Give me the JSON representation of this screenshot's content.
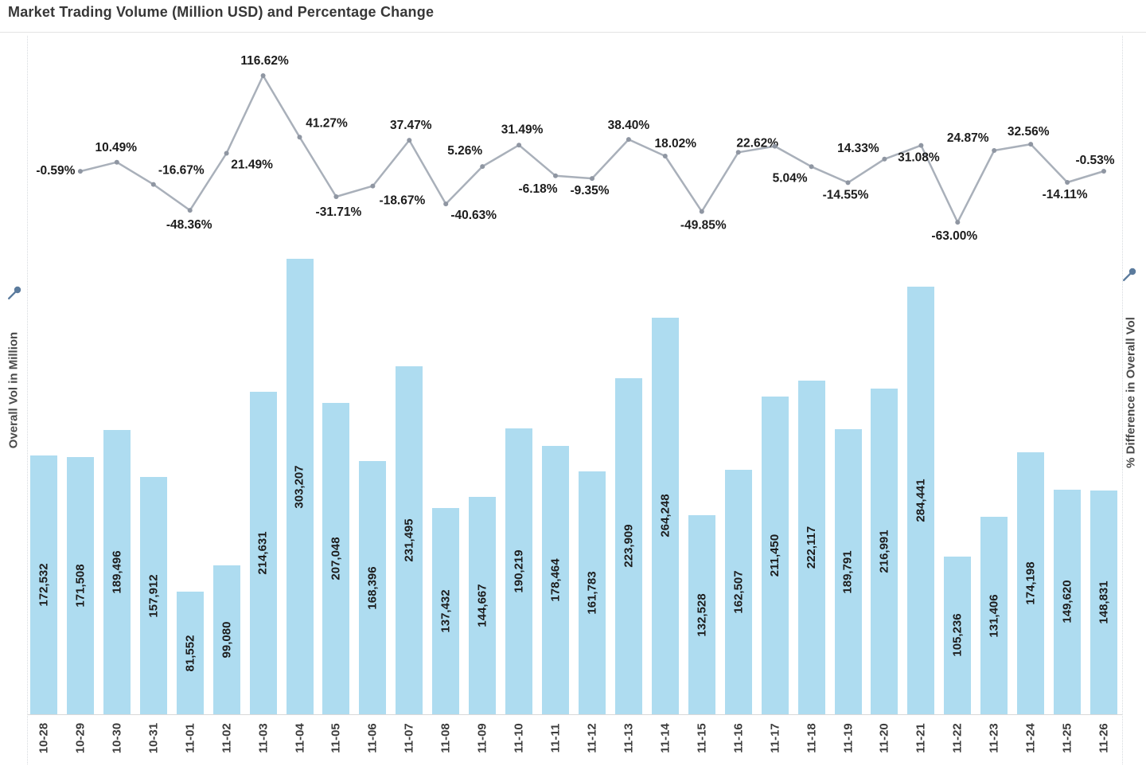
{
  "title": "Market Trading Volume (Million USD) and Percentage Change",
  "axes": {
    "left_title": "Overall Vol in Million",
    "right_title": "% Difference in Overall Vol",
    "left_pin_icon": "pushpin-icon",
    "right_pin_icon": "pushpin-icon"
  },
  "colors": {
    "bar_fill": "#aedcf0",
    "line_stroke": "#a9b0ba",
    "marker_fill": "#8f96a2",
    "value_label_text": "#1c1c1c",
    "tick_label_text": "#3c3c3c",
    "title_text": "#373737",
    "pin_icon": "#5b7b9d",
    "panel_border": "#d9d9d9"
  },
  "chart_data": {
    "type": "combo-bar-line",
    "title": "Market Trading Volume (Million USD) and Percentage Change",
    "grid": false,
    "legend": "none",
    "bar_ylim": [
      0,
      310000
    ],
    "line_ylim": [
      -70,
      125
    ],
    "bar_label_format": "#,###",
    "categories": [
      "10-28",
      "10-29",
      "10-30",
      "10-31",
      "11-01",
      "11-02",
      "11-03",
      "11-04",
      "11-05",
      "11-06",
      "11-07",
      "11-08",
      "11-09",
      "11-10",
      "11-11",
      "11-12",
      "11-13",
      "11-14",
      "11-15",
      "11-16",
      "11-17",
      "11-18",
      "11-19",
      "11-20",
      "11-21",
      "11-22",
      "11-23",
      "11-24",
      "11-25",
      "11-26"
    ],
    "series": [
      {
        "name": "Overall Vol in Million",
        "type": "bar",
        "axis": "left",
        "values": [
          172532,
          171508,
          189496,
          157912,
          81552,
          99080,
          214631,
          303207,
          207048,
          168396,
          231495,
          137432,
          144667,
          190219,
          178464,
          161783,
          223909,
          264248,
          132528,
          162507,
          211450,
          222117,
          189791,
          216991,
          284441,
          105236,
          131406,
          174198,
          149620,
          148831
        ]
      },
      {
        "name": "% Difference in Overall Vol",
        "type": "line",
        "axis": "right",
        "points": [
          {
            "category": "10-29",
            "value": -0.59,
            "label": "-0.59%",
            "label_dx": -31,
            "label_dy": 0
          },
          {
            "category": "10-30",
            "value": 10.49,
            "label": "10.49%",
            "label_dx": -1,
            "label_dy": -18
          },
          {
            "category": "10-31",
            "value": -16.67,
            "label": "-16.67%",
            "label_dx": 35,
            "label_dy": -17
          },
          {
            "category": "11-01",
            "value": -48.36,
            "label": "-48.36%",
            "label_dx": -1,
            "label_dy": 19
          },
          {
            "category": "11-02",
            "value": 21.49,
            "label": "21.49%",
            "label_dx": 32,
            "label_dy": 15
          },
          {
            "category": "11-03",
            "value": 116.62,
            "label": "116.62%",
            "label_dx": 2,
            "label_dy": -18
          },
          {
            "category": "11-04",
            "value": 41.27,
            "label": "41.27%",
            "label_dx": 34,
            "label_dy": -17
          },
          {
            "category": "11-05",
            "value": -31.71,
            "label": "-31.71%",
            "label_dx": 3,
            "label_dy": 20
          },
          {
            "category": "11-06",
            "value": -18.67,
            "label": "-18.67%",
            "label_dx": 37,
            "label_dy": 19
          },
          {
            "category": "11-07",
            "value": 37.47,
            "label": "37.47%",
            "label_dx": 2,
            "label_dy": -18
          },
          {
            "category": "11-08",
            "value": -40.63,
            "label": "-40.63%",
            "label_dx": 35,
            "label_dy": 15
          },
          {
            "category": "11-09",
            "value": 5.26,
            "label": "5.26%",
            "label_dx": -22,
            "label_dy": -19
          },
          {
            "category": "11-10",
            "value": 31.49,
            "label": "31.49%",
            "label_dx": 4,
            "label_dy": -19
          },
          {
            "category": "11-11",
            "value": -6.18,
            "label": "-6.18%",
            "label_dx": -22,
            "label_dy": 17
          },
          {
            "category": "11-12",
            "value": -9.35,
            "label": "-9.35%",
            "label_dx": -3,
            "label_dy": 16
          },
          {
            "category": "11-13",
            "value": 38.4,
            "label": "38.40%",
            "label_dx": 0,
            "label_dy": -17
          },
          {
            "category": "11-14",
            "value": 18.02,
            "label": "18.02%",
            "label_dx": 13,
            "label_dy": -15
          },
          {
            "category": "11-15",
            "value": -49.85,
            "label": "-49.85%",
            "label_dx": 2,
            "label_dy": 18
          },
          {
            "category": "11-16",
            "value": 22.62,
            "label": "22.62%",
            "label_dx": 24,
            "label_dy": -11
          },
          {
            "category": "11-17",
            "value": 30.12,
            "label": "",
            "label_dx": 0,
            "label_dy": 0
          },
          {
            "category": "11-18",
            "value": 5.04,
            "label": "5.04%",
            "label_dx": -27,
            "label_dy": 15
          },
          {
            "category": "11-19",
            "value": -14.55,
            "label": "-14.55%",
            "label_dx": -3,
            "label_dy": 16
          },
          {
            "category": "11-20",
            "value": 14.33,
            "label": "14.33%",
            "label_dx": -33,
            "label_dy": -13
          },
          {
            "category": "11-21",
            "value": 31.08,
            "label": "31.08%",
            "label_dx": -3,
            "label_dy": 16
          },
          {
            "category": "11-22",
            "value": -63.0,
            "label": "-63.00%",
            "label_dx": -4,
            "label_dy": 18
          },
          {
            "category": "11-23",
            "value": 24.87,
            "label": "24.87%",
            "label_dx": -33,
            "label_dy": -15
          },
          {
            "category": "11-24",
            "value": 32.56,
            "label": "32.56%",
            "label_dx": -3,
            "label_dy": -15
          },
          {
            "category": "11-25",
            "value": -14.11,
            "label": "-14.11%",
            "label_dx": -3,
            "label_dy": 16
          },
          {
            "category": "11-26",
            "value": -0.53,
            "label": "-0.53%",
            "label_dx": -11,
            "label_dy": -13
          }
        ]
      }
    ]
  }
}
